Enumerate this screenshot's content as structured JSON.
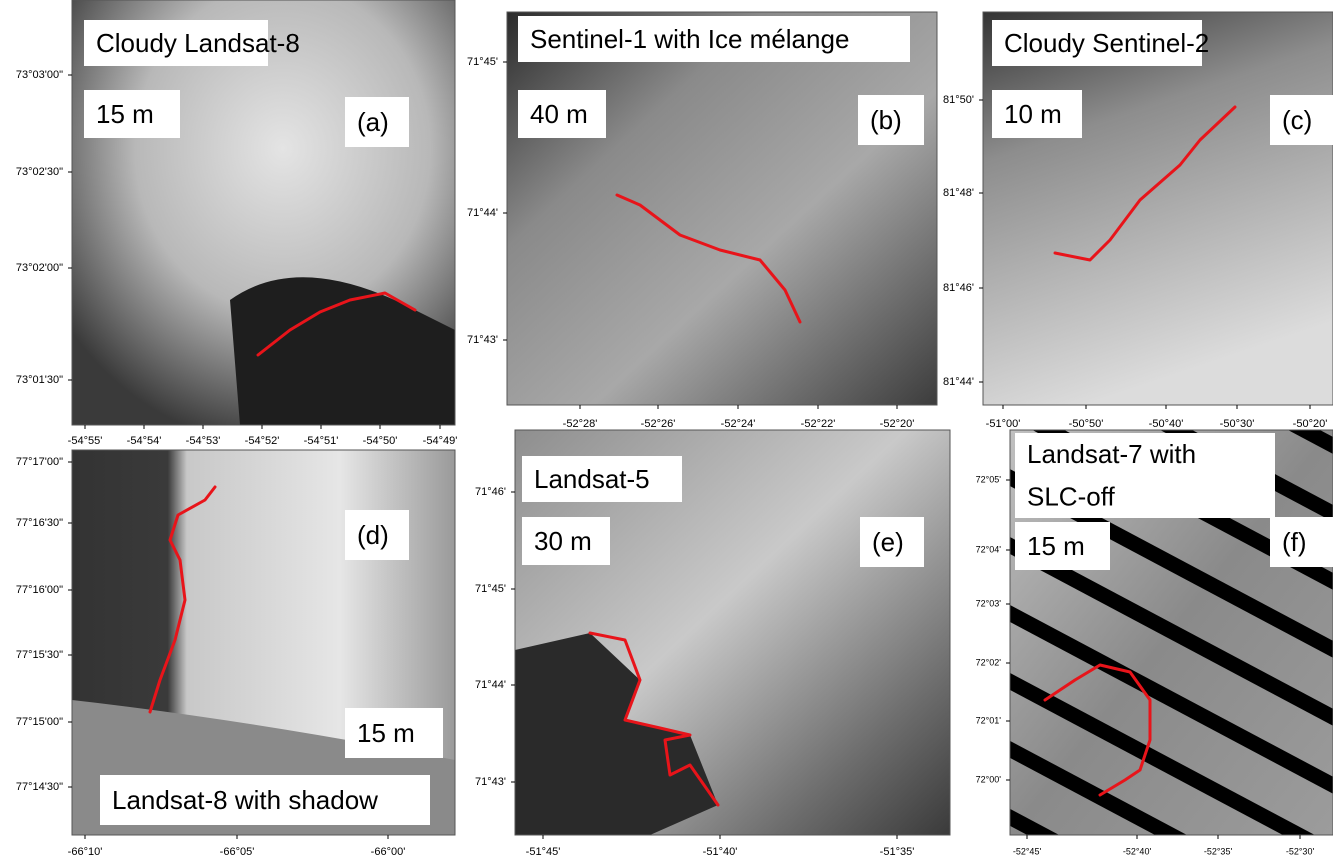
{
  "panels": [
    {
      "title": [
        "Cloudy Landsat-8"
      ],
      "resolution": "15 m",
      "label": "(a)",
      "yticks": [
        "73°03'00\"",
        "73°02'30\"",
        "73°02'00\"",
        "73°01'30\""
      ],
      "xticks": [
        "-54°55'",
        "-54°54'",
        "-54°53'",
        "-54°52'",
        "-54°51'",
        "-54°50'",
        "-54°49'"
      ]
    },
    {
      "title": [
        "Sentinel-1 with Ice mélange"
      ],
      "resolution": "40 m",
      "label": "(b)",
      "yticks": [
        "71°45'",
        "71°44'",
        "71°43'"
      ],
      "xticks": [
        "-52°28'",
        "-52°26'",
        "-52°24'",
        "-52°22'",
        "-52°20'"
      ]
    },
    {
      "title": [
        "Cloudy Sentinel-2"
      ],
      "resolution": "10 m",
      "label": "(c)",
      "yticks": [
        "81°50'",
        "81°48'",
        "81°46'",
        "81°44'"
      ],
      "xticks": [
        "-51°00'",
        "-50°50'",
        "-50°40'",
        "-50°30'",
        "-50°20'"
      ]
    },
    {
      "title": [
        "Landsat-8 with shadow"
      ],
      "resolution": "15 m",
      "label": "(d)",
      "yticks": [
        "77°17'00\"",
        "77°16'30\"",
        "77°16'00\"",
        "77°15'30\"",
        "77°15'00\"",
        "77°14'30\""
      ],
      "xticks": [
        "-66°10'",
        "-66°05'",
        "-66°00'"
      ]
    },
    {
      "title": [
        "Landsat-5"
      ],
      "resolution": "30 m",
      "label": "(e)",
      "yticks": [
        "71°46'",
        "71°45'",
        "71°44'",
        "71°43'"
      ],
      "xticks": [
        "-51°45'",
        "-51°40'",
        "-51°35'"
      ]
    },
    {
      "title": [
        "Landsat-7 with",
        "SLC-off"
      ],
      "resolution": "15 m",
      "label": "(f)",
      "yticks": [
        "72°05'",
        "72°04'",
        "72°03'",
        "72°02'",
        "72°01'",
        "72°00'"
      ],
      "xticks": [
        "-52°45'",
        "-52°40'",
        "-52°35'",
        "-52°30'"
      ]
    }
  ]
}
